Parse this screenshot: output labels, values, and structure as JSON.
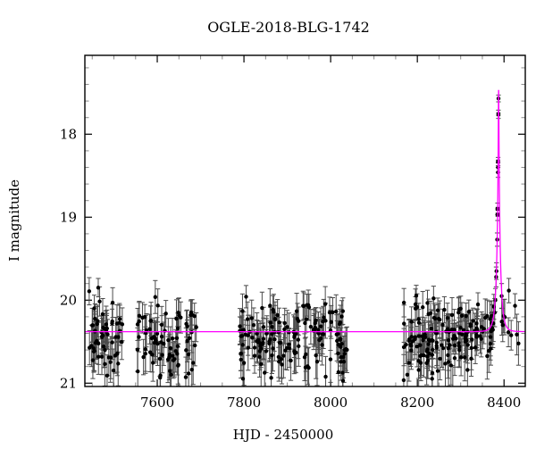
{
  "title": "OGLE-2018-BLG-1742",
  "chart_data": {
    "type": "scatter",
    "title": "OGLE-2018-BLG-1742",
    "xlabel": "HJD - 2450000",
    "ylabel": "I magnitude",
    "xlim": [
      7433,
      8449
    ],
    "ylim": [
      21.04,
      17.05
    ],
    "y_inverted": true,
    "grid": false,
    "x_major_ticks": [
      7600,
      7800,
      8000,
      8200,
      8400
    ],
    "x_minor_step": 50,
    "y_major_ticks": [
      18,
      19,
      20,
      21
    ],
    "y_minor_step": 0.2,
    "baseline_mag": 20.38,
    "model": {
      "type": "paczynski",
      "I0": 20.38,
      "t0": 8387.5,
      "tE": 9.0,
      "u0": 0.068,
      "color": "#ff00ff"
    },
    "seed": 1337,
    "scatter_clusters": [
      {
        "name": "season-2016a",
        "t_min": 7438,
        "t_max": 7522,
        "n": 60,
        "mean_mag": 20.47,
        "sigma_mag": 0.22
      },
      {
        "name": "season-2016b",
        "t_min": 7552,
        "t_max": 7690,
        "n": 78,
        "mean_mag": 20.48,
        "sigma_mag": 0.23
      },
      {
        "name": "season-2017",
        "t_min": 7790,
        "t_max": 8046,
        "n": 155,
        "mean_mag": 20.46,
        "sigma_mag": 0.21
      },
      {
        "name": "season-2018",
        "t_min": 8168,
        "t_max": 8376,
        "n": 160,
        "mean_mag": 20.45,
        "sigma_mag": 0.21
      },
      {
        "name": "post-peak",
        "t_min": 8392,
        "t_max": 8440,
        "n": 9,
        "mean_mag": 20.3,
        "sigma_mag": 0.25
      }
    ],
    "error_model": {
      "base": 0.1,
      "slope": 0.12,
      "rand": 0.08,
      "ref_mag": 19.8
    },
    "peak_points": [
      {
        "t": 8387.2,
        "mag": 17.57,
        "err": 0.04,
        "marker": "circle"
      },
      {
        "t": 8387.0,
        "mag": 17.76,
        "err": 0.05,
        "marker": "square"
      },
      {
        "t": 8386.3,
        "mag": 18.33,
        "err": 0.05,
        "marker": "square"
      },
      {
        "t": 8386.2,
        "mag": 18.4,
        "err": 0.06,
        "marker": "circle"
      },
      {
        "t": 8386.1,
        "mag": 18.46,
        "err": 0.06,
        "marker": "circle"
      },
      {
        "t": 8385.2,
        "mag": 18.9,
        "err": 0.07,
        "marker": "square"
      },
      {
        "t": 8385.1,
        "mag": 18.97,
        "err": 0.07,
        "marker": "square"
      },
      {
        "t": 8384.2,
        "mag": 19.27,
        "err": 0.08,
        "marker": "circle"
      },
      {
        "t": 8382.5,
        "mag": 19.65,
        "err": 0.1,
        "marker": "circle"
      },
      {
        "t": 8381.8,
        "mag": 19.72,
        "err": 0.12,
        "marker": "circle"
      },
      {
        "t": 8380.0,
        "mag": 20.0,
        "err": 0.14,
        "marker": "circle"
      },
      {
        "t": 8378.5,
        "mag": 20.15,
        "err": 0.17,
        "marker": "circle"
      },
      {
        "t": 8376.5,
        "mag": 20.08,
        "err": 0.15,
        "marker": "circle"
      },
      {
        "t": 8394.5,
        "mag": 19.95,
        "err": 0.15,
        "marker": "circle"
      },
      {
        "t": 8397.0,
        "mag": 20.3,
        "err": 0.2,
        "marker": "circle"
      }
    ],
    "marker_color": "#000000",
    "errorbar_color": "#4a4a4a",
    "major_tick_color": "#000000",
    "minor_tick_color": "#888888",
    "frame_color": "#000000",
    "background_color": "#ffffff"
  }
}
